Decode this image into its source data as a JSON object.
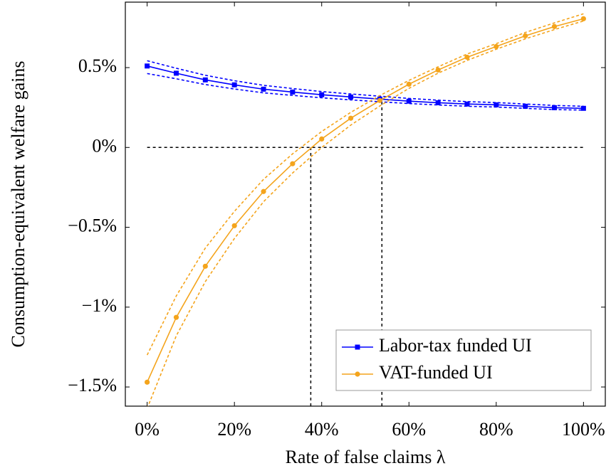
{
  "chart_data": {
    "type": "line",
    "xlabel": "Rate of false claims λ",
    "ylabel": "Consumption-equivalent welfare gains",
    "x": [
      0,
      6.67,
      13.33,
      20,
      26.67,
      33.33,
      40,
      46.67,
      53.33,
      60,
      66.67,
      73.33,
      80,
      86.67,
      93.33,
      100
    ],
    "series": [
      {
        "name": "Labor-tax funded UI",
        "color": "#0000ff",
        "marker": "square",
        "values": [
          0.51,
          0.465,
          0.423,
          0.392,
          0.365,
          0.347,
          0.33,
          0.316,
          0.303,
          0.29,
          0.28,
          0.272,
          0.267,
          0.258,
          0.249,
          0.245
        ],
        "upper": [
          0.543,
          0.496,
          0.452,
          0.418,
          0.389,
          0.369,
          0.35,
          0.335,
          0.321,
          0.307,
          0.296,
          0.287,
          0.281,
          0.272,
          0.263,
          0.258
        ],
        "lower": [
          0.463,
          0.43,
          0.394,
          0.366,
          0.342,
          0.326,
          0.311,
          0.298,
          0.286,
          0.275,
          0.266,
          0.258,
          0.253,
          0.245,
          0.237,
          0.234
        ]
      },
      {
        "name": "VAT-funded UI",
        "color": "#f4a41c",
        "marker": "circle",
        "values": [
          -1.47,
          -1.064,
          -0.744,
          -0.49,
          -0.276,
          -0.102,
          0.053,
          0.183,
          0.294,
          0.396,
          0.485,
          0.565,
          0.632,
          0.699,
          0.757,
          0.806
        ],
        "upper": [
          -1.3,
          -0.93,
          -0.63,
          -0.4,
          -0.2,
          -0.04,
          0.1,
          0.22,
          0.325,
          0.42,
          0.505,
          0.585,
          0.65,
          0.72,
          0.78,
          0.837
        ],
        "lower": [
          -1.634,
          -1.18,
          -0.84,
          -0.57,
          -0.34,
          -0.16,
          0.0,
          0.14,
          0.26,
          0.37,
          0.465,
          0.545,
          0.615,
          0.68,
          0.738,
          0.792
        ]
      }
    ],
    "reference_lines": {
      "hline": {
        "y": 0,
        "x": [
          0,
          100
        ]
      },
      "vlines": [
        {
          "x": 37.5,
          "y": 0
        },
        {
          "x": 53.8,
          "y": 0.29
        }
      ]
    },
    "xlim": [
      -5,
      105
    ],
    "ylim": [
      -1.62,
      0.91
    ],
    "xticks": [
      {
        "value": 0,
        "label": "0%"
      },
      {
        "value": 20,
        "label": "20%"
      },
      {
        "value": 40,
        "label": "40%"
      },
      {
        "value": 60,
        "label": "60%"
      },
      {
        "value": 80,
        "label": "80%"
      },
      {
        "value": 100,
        "label": "100%"
      }
    ],
    "yticks": [
      {
        "value": -1.5,
        "label": "−1.5%"
      },
      {
        "value": -1,
        "label": "−1%"
      },
      {
        "value": -0.5,
        "label": "−0.5%"
      },
      {
        "value": 0,
        "label": "0%"
      },
      {
        "value": 0.5,
        "label": "0.5%"
      }
    ],
    "legend": "lower right"
  }
}
